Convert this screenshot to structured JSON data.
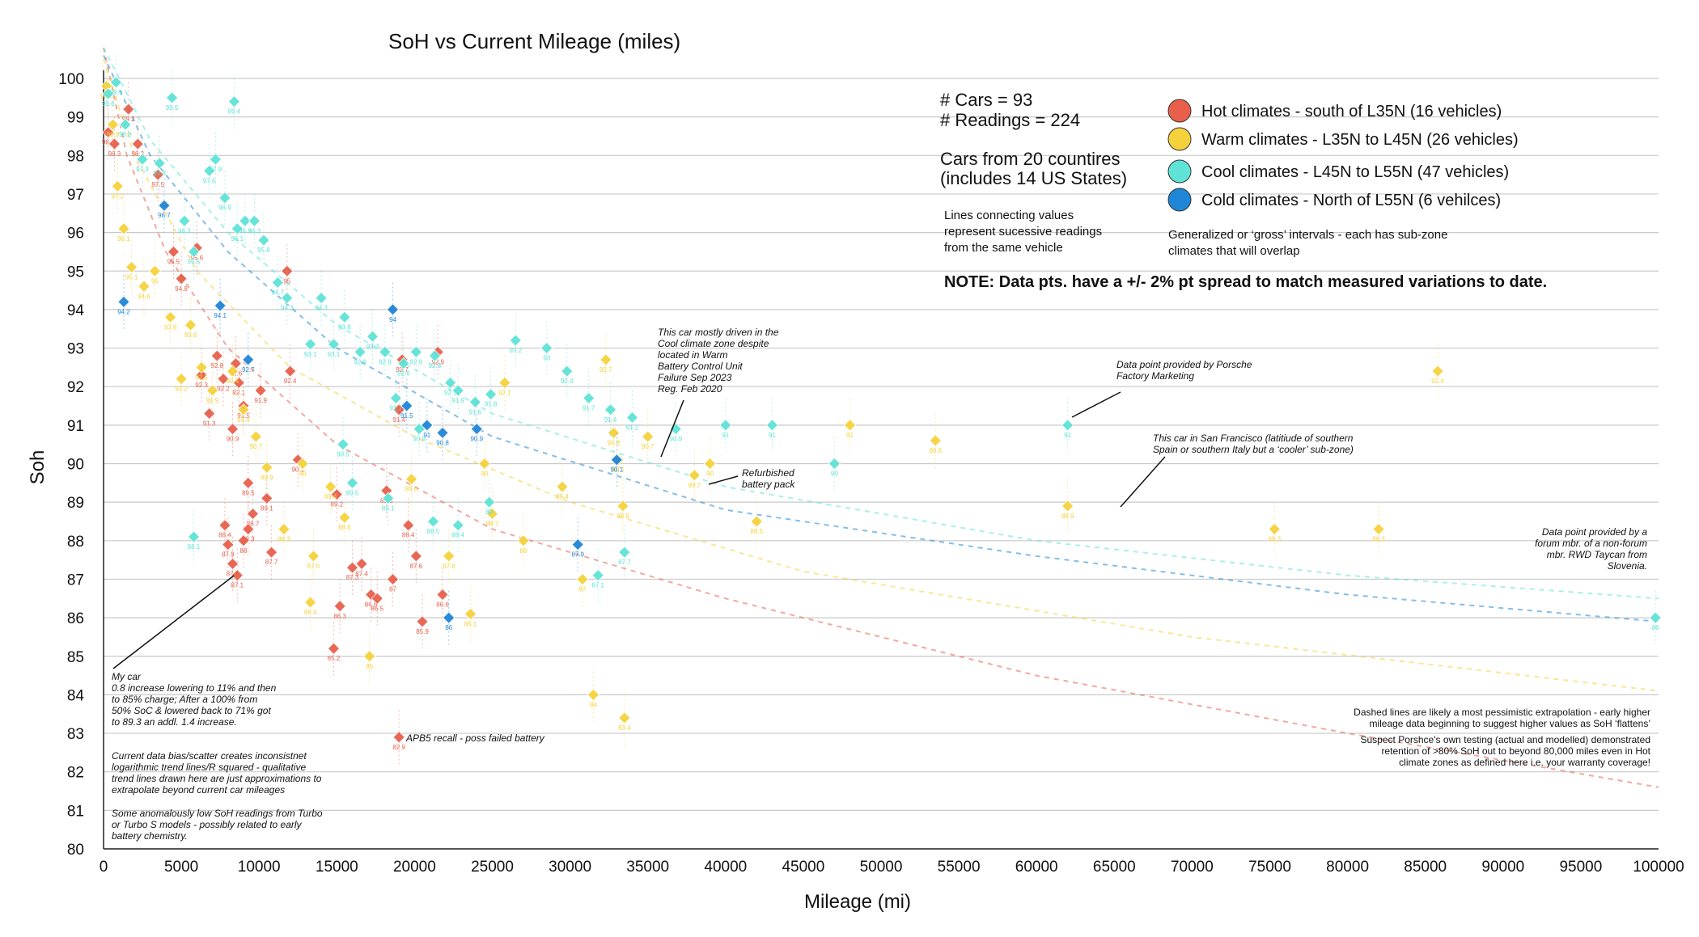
{
  "chart_data": {
    "type": "scatter",
    "title": "SoH vs Current Mileage (miles)",
    "xlabel": "Mileage (mi)",
    "ylabel": "Soh",
    "xlim": [
      0,
      100000
    ],
    "ylim": [
      80,
      100
    ],
    "x_ticks": [
      0,
      5000,
      10000,
      15000,
      20000,
      25000,
      30000,
      35000,
      40000,
      45000,
      50000,
      55000,
      60000,
      65000,
      70000,
      75000,
      80000,
      85000,
      90000,
      95000,
      100000
    ],
    "y_ticks": [
      80,
      81,
      82,
      83,
      84,
      85,
      86,
      87,
      88,
      89,
      90,
      91,
      92,
      93,
      94,
      95,
      96,
      97,
      98,
      99,
      100
    ],
    "grid": "horizontal",
    "legend_position": "top-right",
    "stats": {
      "cars": "# Cars = 93",
      "readings": "# Readings = 224",
      "countries_1": "Cars from 20 countires",
      "countries_2": "(includes 14 US States)"
    },
    "lines_note": [
      "Lines connecting values",
      "represent sucessive readings",
      "from the same vehicle"
    ],
    "generalized_note": [
      "Generalized or ‘gross’ intervals - each has sub-zone",
      "climates that will overlap"
    ],
    "spread_note": "NOTE: Data pts. have a +/- 2% pt spread to match measured variations to date.",
    "series": [
      {
        "name": "Hot climates  - south of L35N (16 vehicles)",
        "color": "#e8604c",
        "points": [
          [
            300,
            98.6
          ],
          [
            700,
            98.3
          ],
          [
            1600,
            99.2
          ],
          [
            2200,
            98.3
          ],
          [
            3500,
            97.5
          ],
          [
            4500,
            95.5
          ],
          [
            5000,
            94.8
          ],
          [
            6000,
            95.6
          ],
          [
            6300,
            92.3
          ],
          [
            6800,
            91.3
          ],
          [
            7300,
            92.8
          ],
          [
            7700,
            92.2
          ],
          [
            8300,
            90.9
          ],
          [
            8500,
            92.6
          ],
          [
            8700,
            92.1
          ],
          [
            9000,
            91.5
          ],
          [
            9300,
            89.5
          ],
          [
            9600,
            88.7
          ],
          [
            10100,
            91.9
          ],
          [
            10500,
            89.1
          ],
          [
            10800,
            87.7
          ],
          [
            7800,
            88.4
          ],
          [
            8000,
            87.9
          ],
          [
            8300,
            87.4
          ],
          [
            8600,
            87.1
          ],
          [
            9000,
            88.0
          ],
          [
            9300,
            88.3
          ],
          [
            11800,
            95.0
          ],
          [
            12000,
            92.4
          ],
          [
            12500,
            90.1
          ],
          [
            15000,
            89.2
          ],
          [
            15200,
            86.3
          ],
          [
            14800,
            85.2
          ],
          [
            16000,
            87.3
          ],
          [
            16600,
            87.4
          ],
          [
            17200,
            86.6
          ],
          [
            17600,
            86.5
          ],
          [
            18200,
            89.3
          ],
          [
            18600,
            87.0
          ],
          [
            19000,
            91.4
          ],
          [
            19200,
            92.7
          ],
          [
            19600,
            88.4
          ],
          [
            20100,
            87.6
          ],
          [
            20500,
            85.9
          ],
          [
            21500,
            92.9
          ],
          [
            21800,
            86.6
          ],
          [
            19000,
            82.9
          ]
        ]
      },
      {
        "name": "Warm climates - L35N to L45N (26 vehicles)",
        "color": "#f5d23c",
        "points": [
          [
            200,
            99.8
          ],
          [
            600,
            98.8
          ],
          [
            900,
            97.2
          ],
          [
            1300,
            96.1
          ],
          [
            1800,
            95.1
          ],
          [
            2600,
            94.6
          ],
          [
            3300,
            95.0
          ],
          [
            4300,
            93.8
          ],
          [
            5000,
            92.2
          ],
          [
            5600,
            93.6
          ],
          [
            6300,
            92.5
          ],
          [
            7000,
            91.9
          ],
          [
            8300,
            92.4
          ],
          [
            9000,
            91.4
          ],
          [
            9800,
            90.7
          ],
          [
            10500,
            89.9
          ],
          [
            11600,
            88.3
          ],
          [
            12800,
            90.0
          ],
          [
            13300,
            86.4
          ],
          [
            13500,
            87.6
          ],
          [
            14600,
            89.4
          ],
          [
            15500,
            88.6
          ],
          [
            17100,
            85.0
          ],
          [
            19800,
            89.6
          ],
          [
            22200,
            87.6
          ],
          [
            23600,
            86.1
          ],
          [
            24500,
            90.0
          ],
          [
            25800,
            92.1
          ],
          [
            25000,
            88.7
          ],
          [
            27000,
            88.0
          ],
          [
            29500,
            89.4
          ],
          [
            30800,
            87.0
          ],
          [
            31500,
            84.0
          ],
          [
            32300,
            92.7
          ],
          [
            32800,
            90.8
          ],
          [
            33100,
            90.1
          ],
          [
            33400,
            88.9
          ],
          [
            33500,
            83.4
          ],
          [
            35000,
            90.7
          ],
          [
            38000,
            89.7
          ],
          [
            39000,
            90.0
          ],
          [
            42000,
            88.5
          ],
          [
            48000,
            91.0
          ],
          [
            53500,
            90.6
          ],
          [
            62000,
            88.9
          ],
          [
            75300,
            88.3
          ],
          [
            82000,
            88.3
          ],
          [
            85800,
            92.4
          ]
        ]
      },
      {
        "name": "Cool climates - L45N to L55N (47 vehicles)",
        "color": "#5ee3d6",
        "points": [
          [
            300,
            99.6
          ],
          [
            800,
            99.9
          ],
          [
            1400,
            98.8
          ],
          [
            2500,
            97.9
          ],
          [
            3600,
            97.8
          ],
          [
            4400,
            99.5
          ],
          [
            5200,
            96.3
          ],
          [
            5800,
            95.5
          ],
          [
            6800,
            97.6
          ],
          [
            7200,
            97.9
          ],
          [
            7800,
            96.9
          ],
          [
            8400,
            99.4
          ],
          [
            8600,
            96.1
          ],
          [
            9100,
            96.3
          ],
          [
            9700,
            96.3
          ],
          [
            10300,
            95.8
          ],
          [
            11200,
            94.7
          ],
          [
            11800,
            94.3
          ],
          [
            13300,
            93.1
          ],
          [
            14000,
            94.3
          ],
          [
            14800,
            93.1
          ],
          [
            15500,
            93.8
          ],
          [
            16500,
            92.9
          ],
          [
            17300,
            93.3
          ],
          [
            18100,
            92.9
          ],
          [
            18800,
            91.7
          ],
          [
            19300,
            92.6
          ],
          [
            20100,
            92.9
          ],
          [
            21300,
            92.8
          ],
          [
            22300,
            92.1
          ],
          [
            22800,
            91.9
          ],
          [
            23900,
            91.6
          ],
          [
            24900,
            91.8
          ],
          [
            26500,
            93.2
          ],
          [
            28500,
            93.0
          ],
          [
            29800,
            92.4
          ],
          [
            31200,
            91.7
          ],
          [
            32600,
            91.4
          ],
          [
            34000,
            91.2
          ],
          [
            36800,
            90.9
          ],
          [
            40000,
            91.0
          ],
          [
            43000,
            91.0
          ],
          [
            47000,
            90.0
          ],
          [
            62000,
            91.0
          ],
          [
            99800,
            86.0
          ],
          [
            5800,
            88.1
          ],
          [
            15400,
            90.5
          ],
          [
            16000,
            89.5
          ],
          [
            18300,
            89.1
          ],
          [
            20300,
            90.9
          ],
          [
            21200,
            88.5
          ],
          [
            22800,
            88.4
          ],
          [
            24800,
            89.0
          ],
          [
            31800,
            87.1
          ],
          [
            33500,
            87.7
          ]
        ]
      },
      {
        "name": "Cold climates - North of L55N (6 vehilces)",
        "color": "#1f86d8",
        "points": [
          [
            1300,
            94.2
          ],
          [
            3900,
            96.7
          ],
          [
            7500,
            94.1
          ],
          [
            9300,
            92.7
          ],
          [
            18600,
            94.0
          ],
          [
            19500,
            91.5
          ],
          [
            20800,
            91.0
          ],
          [
            21800,
            90.8
          ],
          [
            24000,
            90.9
          ],
          [
            30500,
            87.9
          ],
          [
            33000,
            90.1
          ],
          [
            22200,
            86.0
          ]
        ]
      }
    ],
    "annotations": [
      {
        "id": "climate-zone",
        "lines": [
          "This car mostly driven in the",
          "Cool climate zone despite",
          "located in Warm",
          "Battery Control Unit",
          "Failure Sep 2023",
          "Reg. Feb 2020"
        ]
      },
      {
        "id": "porsche-marketing",
        "lines": [
          "Data point provided by Porsche",
          "Factory Marketing"
        ]
      },
      {
        "id": "san-francisco",
        "lines": [
          "This car in San Francisco  (latitiude of southern",
          "Spain or southern Italy but a ‘cooler’ sub-zone)"
        ]
      },
      {
        "id": "refurbished",
        "lines": [
          "Refurbished",
          "battery pack"
        ]
      },
      {
        "id": "slovenia",
        "lines": [
          "Data point provided by a",
          "forum mbr. of a non-forum",
          "mbr. RWD Taycan from",
          "Slovenia."
        ]
      },
      {
        "id": "my-car",
        "lines": [
          "My car",
          "0.8 increase lowering to 11% and then",
          "to 85% charge; After a 100% from",
          "50% SoC & lowered back to 71% got",
          "to 89.3 an addl. 1.4 increase."
        ]
      },
      {
        "id": "apb5",
        "lines": [
          "APB5 recall - poss failed battery"
        ]
      },
      {
        "id": "bias",
        "lines": [
          "Current data bias/scatter creates inconsistnet",
          "logarithmic trend lines/R squared - qualitative",
          "trend lines drawn here are just approximations to",
          "extrapolate beyond current car mileages"
        ]
      },
      {
        "id": "turbo",
        "lines": [
          "Some anomalously low SoH readings from Turbo",
          "or Turbo S models - possibly related to early",
          "battery chemistry."
        ]
      },
      {
        "id": "dashed",
        "lines": [
          "Dashed lines are likely a most pessimistic extrapolation - early higher",
          "mileage data beginning to suggest higher values as SoH ‘flattens’"
        ]
      },
      {
        "id": "porsche-testing",
        "lines": [
          "Suspect Porshce's own testing (actual and modelled) demonstrated",
          "retention of >80% SoH out to beyond 80,000 miles even in Hot",
          "climate zones as defined here i.e. your warranty coverage!"
        ]
      }
    ]
  }
}
